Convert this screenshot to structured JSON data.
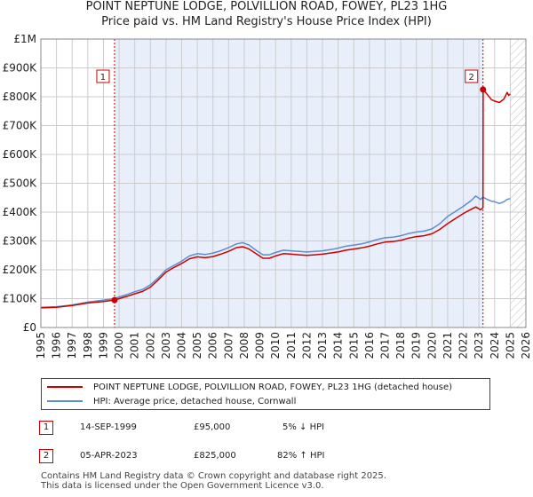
{
  "title_line1": "POINT NEPTUNE LODGE, POLVILLION ROAD, FOWEY, PL23 1HG",
  "title_line2": "Price paid vs. HM Land Registry's House Price Index (HPI)",
  "colors": {
    "property": "#cc0000",
    "hpi": "#5b8fd0",
    "shade": "#e8eefa",
    "grid": "#cccccc",
    "marker_border": "#cc0000"
  },
  "chart_data": {
    "type": "line",
    "x_range": [
      1995,
      2026
    ],
    "ylim": [
      0,
      1000000
    ],
    "y_ticks": [
      {
        "value": 0,
        "label": "£0"
      },
      {
        "value": 100000,
        "label": "£100K"
      },
      {
        "value": 200000,
        "label": "£200K"
      },
      {
        "value": 300000,
        "label": "£300K"
      },
      {
        "value": 400000,
        "label": "£400K"
      },
      {
        "value": 500000,
        "label": "£500K"
      },
      {
        "value": 600000,
        "label": "£600K"
      },
      {
        "value": 700000,
        "label": "£700K"
      },
      {
        "value": 800000,
        "label": "£800K"
      },
      {
        "value": 900000,
        "label": "£900K"
      },
      {
        "value": 1000000,
        "label": "£1M"
      }
    ],
    "x_ticks": [
      1995,
      1996,
      1997,
      1998,
      1999,
      2000,
      2001,
      2002,
      2003,
      2004,
      2005,
      2006,
      2007,
      2008,
      2009,
      2010,
      2011,
      2012,
      2013,
      2014,
      2015,
      2016,
      2017,
      2018,
      2019,
      2020,
      2021,
      2022,
      2023,
      2024,
      2025,
      2026
    ],
    "shaded_range": [
      1999.71,
      2023.26
    ],
    "hatched_from": 2025.0,
    "series": [
      {
        "name": "POINT NEPTUNE LODGE, POLVILLION ROAD, FOWEY, PL23 1HG (detached house)",
        "color": "#cc0000",
        "points": [
          [
            1995.0,
            68000
          ],
          [
            1996.0,
            70000
          ],
          [
            1997.0,
            76000
          ],
          [
            1998.0,
            85000
          ],
          [
            1999.0,
            90000
          ],
          [
            1999.71,
            95000
          ],
          [
            2000.0,
            100000
          ],
          [
            2000.5,
            108000
          ],
          [
            2001.0,
            117000
          ],
          [
            2001.5,
            125000
          ],
          [
            2002.0,
            140000
          ],
          [
            2002.5,
            165000
          ],
          [
            2003.0,
            192000
          ],
          [
            2003.5,
            208000
          ],
          [
            2004.0,
            222000
          ],
          [
            2004.5,
            238000
          ],
          [
            2005.0,
            245000
          ],
          [
            2005.5,
            242000
          ],
          [
            2006.0,
            246000
          ],
          [
            2006.5,
            254000
          ],
          [
            2007.0,
            264000
          ],
          [
            2007.5,
            277000
          ],
          [
            2007.9,
            280000
          ],
          [
            2008.3,
            272000
          ],
          [
            2008.8,
            254000
          ],
          [
            2009.2,
            240000
          ],
          [
            2009.6,
            240000
          ],
          [
            2010.0,
            248000
          ],
          [
            2010.5,
            256000
          ],
          [
            2011.0,
            254000
          ],
          [
            2011.5,
            252000
          ],
          [
            2012.0,
            250000
          ],
          [
            2012.5,
            252000
          ],
          [
            2013.0,
            254000
          ],
          [
            2013.5,
            258000
          ],
          [
            2014.0,
            262000
          ],
          [
            2014.5,
            268000
          ],
          [
            2015.0,
            272000
          ],
          [
            2015.5,
            276000
          ],
          [
            2016.0,
            282000
          ],
          [
            2016.5,
            290000
          ],
          [
            2017.0,
            296000
          ],
          [
            2017.5,
            298000
          ],
          [
            2018.0,
            302000
          ],
          [
            2018.5,
            310000
          ],
          [
            2019.0,
            315000
          ],
          [
            2019.5,
            318000
          ],
          [
            2020.0,
            325000
          ],
          [
            2020.5,
            340000
          ],
          [
            2021.0,
            360000
          ],
          [
            2021.5,
            378000
          ],
          [
            2022.0,
            395000
          ],
          [
            2022.5,
            410000
          ],
          [
            2022.8,
            418000
          ],
          [
            2023.1,
            408000
          ],
          [
            2023.26,
            415000
          ],
          [
            2023.27,
            825000
          ],
          [
            2023.5,
            810000
          ],
          [
            2023.8,
            790000
          ],
          [
            2024.0,
            785000
          ],
          [
            2024.3,
            780000
          ],
          [
            2024.6,
            792000
          ],
          [
            2024.8,
            815000
          ],
          [
            2024.9,
            805000
          ],
          [
            2025.0,
            810000
          ]
        ]
      },
      {
        "name": "HPI: Average price, detached house, Cornwall",
        "color": "#5b8fd0",
        "points": [
          [
            1995.0,
            70000
          ],
          [
            1996.0,
            72000
          ],
          [
            1997.0,
            78000
          ],
          [
            1998.0,
            88000
          ],
          [
            1999.0,
            95000
          ],
          [
            1999.71,
            100000
          ],
          [
            2000.0,
            106000
          ],
          [
            2000.5,
            114000
          ],
          [
            2001.0,
            124000
          ],
          [
            2001.5,
            132000
          ],
          [
            2002.0,
            148000
          ],
          [
            2002.5,
            172000
          ],
          [
            2003.0,
            200000
          ],
          [
            2003.5,
            215000
          ],
          [
            2004.0,
            230000
          ],
          [
            2004.5,
            248000
          ],
          [
            2005.0,
            256000
          ],
          [
            2005.5,
            253000
          ],
          [
            2006.0,
            258000
          ],
          [
            2006.5,
            266000
          ],
          [
            2007.0,
            277000
          ],
          [
            2007.5,
            290000
          ],
          [
            2007.9,
            294000
          ],
          [
            2008.3,
            286000
          ],
          [
            2008.8,
            266000
          ],
          [
            2009.2,
            252000
          ],
          [
            2009.6,
            252000
          ],
          [
            2010.0,
            260000
          ],
          [
            2010.5,
            268000
          ],
          [
            2011.0,
            266000
          ],
          [
            2011.5,
            264000
          ],
          [
            2012.0,
            262000
          ],
          [
            2012.5,
            264000
          ],
          [
            2013.0,
            266000
          ],
          [
            2013.5,
            270000
          ],
          [
            2014.0,
            275000
          ],
          [
            2014.5,
            282000
          ],
          [
            2015.0,
            286000
          ],
          [
            2015.5,
            290000
          ],
          [
            2016.0,
            297000
          ],
          [
            2016.5,
            305000
          ],
          [
            2017.0,
            311000
          ],
          [
            2017.5,
            313000
          ],
          [
            2018.0,
            318000
          ],
          [
            2018.5,
            326000
          ],
          [
            2019.0,
            331000
          ],
          [
            2019.5,
            334000
          ],
          [
            2020.0,
            342000
          ],
          [
            2020.5,
            360000
          ],
          [
            2021.0,
            385000
          ],
          [
            2021.5,
            402000
          ],
          [
            2022.0,
            420000
          ],
          [
            2022.5,
            440000
          ],
          [
            2022.8,
            456000
          ],
          [
            2023.1,
            444000
          ],
          [
            2023.26,
            452000
          ],
          [
            2023.5,
            445000
          ],
          [
            2023.8,
            438000
          ],
          [
            2024.0,
            436000
          ],
          [
            2024.3,
            430000
          ],
          [
            2024.6,
            436000
          ],
          [
            2024.8,
            444000
          ],
          [
            2025.0,
            447000
          ]
        ]
      }
    ],
    "sales": [
      {
        "label": "1",
        "x": 1999.71,
        "value": 95000
      },
      {
        "label": "2",
        "x": 2023.26,
        "value": 825000
      }
    ]
  },
  "legend": {
    "property_label": "POINT NEPTUNE LODGE, POLVILLION ROAD, FOWEY, PL23 1HG (detached house)",
    "hpi_label": "HPI: Average price, detached house, Cornwall"
  },
  "sales_table": [
    {
      "num": "1",
      "date": "14-SEP-1999",
      "price": "£95,000",
      "hpi": "5% ↓ HPI"
    },
    {
      "num": "2",
      "date": "05-APR-2023",
      "price": "£825,000",
      "hpi": "82% ↑ HPI"
    }
  ],
  "footer": {
    "line1": "Contains HM Land Registry data © Crown copyright and database right 2025.",
    "line2": "This data is licensed under the Open Government Licence v3.0."
  }
}
